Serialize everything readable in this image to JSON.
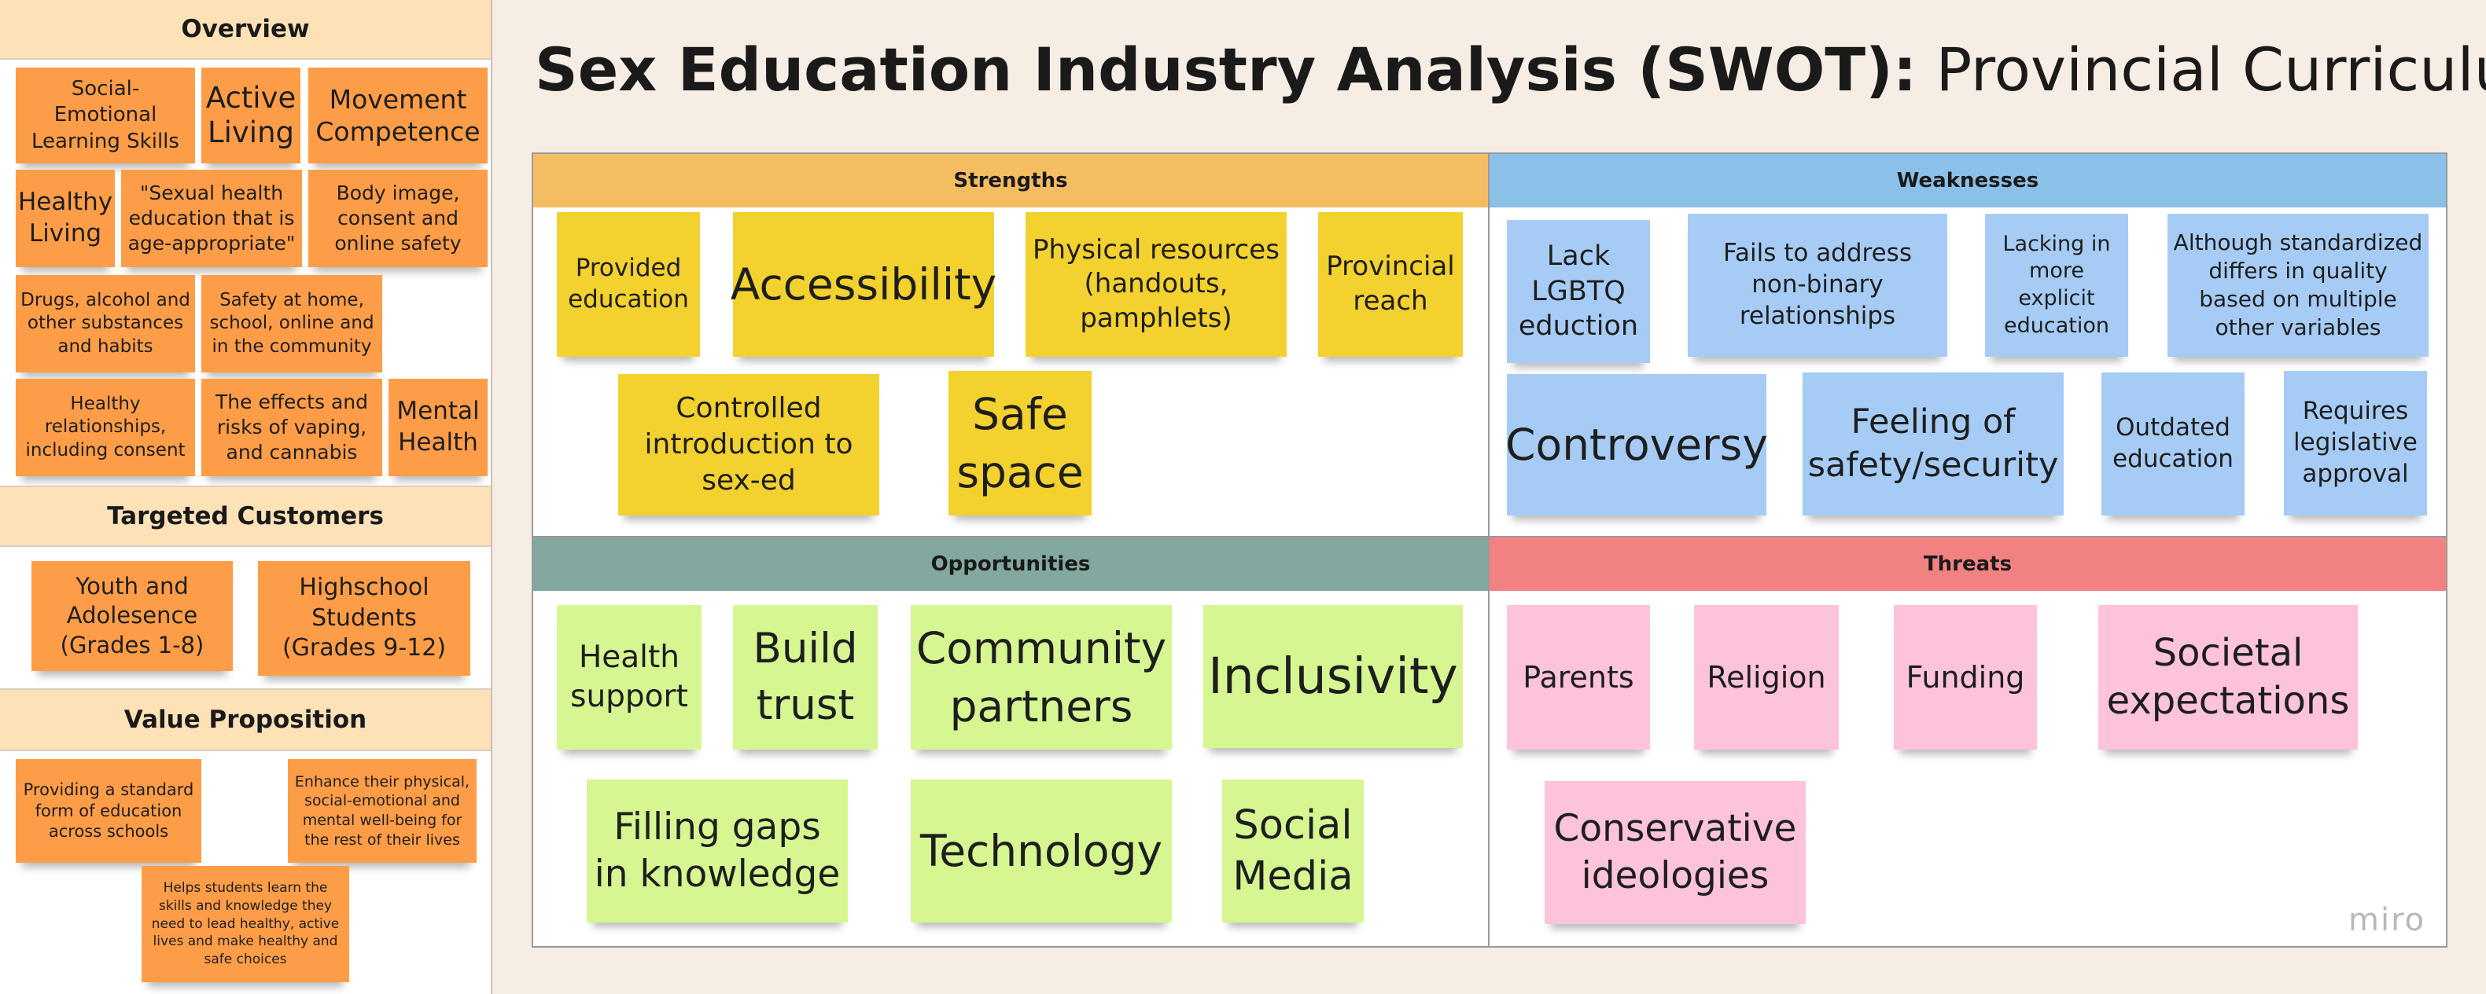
{
  "title": {
    "bold": "Sex Education Industry Analysis (SWOT):",
    "regular": " Provincial Curriculum"
  },
  "colors": {
    "background": "#f6eee4",
    "section_header": "#fde2b8",
    "orange_sticky": "#fe9d48",
    "strengths_header": "#f4bd62",
    "weaknesses_header": "#8bc0e8",
    "opportunities_header": "#82a8a0",
    "threats_header": "#f28282",
    "yellow_sticky": "#f3d12e",
    "blue_sticky": "#a6ccf5",
    "green_sticky": "#d6f692",
    "pink_sticky": "#fdc3da"
  },
  "left_panel": {
    "overview": {
      "header": "Overview",
      "notes": [
        "Social-Emotional Learning Skills",
        "Active Living",
        "Movement Competence",
        "Healthy Living",
        "\"Sexual health education that is age-appropriate\"",
        "Body image, consent and online safety",
        "Drugs, alcohol and other substances and habits",
        "Safety at home, school, online and in the community",
        "Healthy relationships, including consent",
        "The effects and risks of vaping, and cannabis",
        "Mental Health"
      ]
    },
    "targeted_customers": {
      "header": "Targeted Customers",
      "notes": [
        "Youth and Adolesence (Grades 1-8)",
        "Highschool Students (Grades 9-12)"
      ]
    },
    "value_proposition": {
      "header": "Value Proposition",
      "notes": [
        "Providing a standard form of education across schools",
        "Enhance their physical, social-emotional and mental well-being for the rest of their lives",
        "Helps students learn the skills and knowledge they need to lead healthy, active lives and make healthy and safe choices"
      ]
    }
  },
  "swot": {
    "strengths": {
      "header": "Strengths",
      "notes": [
        "Provided education",
        "Accessibility",
        "Physical resources (handouts, pamphlets)",
        "Provincial reach",
        "Controlled introduction to sex-ed",
        "Safe space"
      ]
    },
    "weaknesses": {
      "header": "Weaknesses",
      "notes": [
        "Lack LGBTQ eduction",
        "Fails to address non-binary relationships",
        "Lacking in more explicit education",
        "Although standardized differs in quality based on multiple other variables",
        "Controversy",
        "Feeling of safety/security",
        "Outdated education",
        "Requires legislative approval"
      ]
    },
    "opportunities": {
      "header": "Opportunities",
      "notes": [
        "Health support",
        "Build trust",
        "Community partners",
        "Inclusivity",
        "Filling gaps in knowledge",
        "Technology",
        "Social Media"
      ]
    },
    "threats": {
      "header": "Threats",
      "notes": [
        "Parents",
        "Religion",
        "Funding",
        "Societal expectations",
        "Conservative ideologies"
      ]
    }
  },
  "watermark": "miro"
}
